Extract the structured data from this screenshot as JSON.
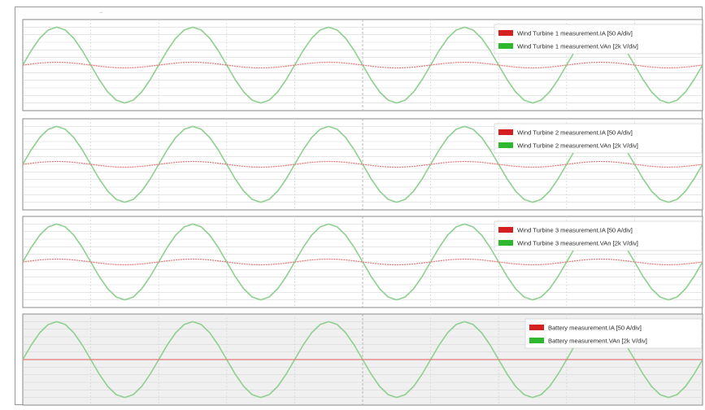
{
  "marker_text": "→",
  "colors": {
    "current": "#d42020",
    "voltage": "#2eb82e",
    "current_trace": "#e07a7a",
    "voltage_trace": "#8fd08f",
    "panel_bg": "#ffffff",
    "panel_bg_last": "#f0f0f0",
    "grid": "#d7d7d7",
    "center_line": "#a8a8a8",
    "panel_border": "#8a8a8a"
  },
  "chart_data": [
    {
      "type": "line",
      "grid": true,
      "legend_position": "top-right",
      "x": [
        0,
        1,
        2,
        3,
        4,
        5,
        6,
        7,
        8,
        9,
        10,
        11,
        12,
        13,
        14,
        15,
        16,
        17,
        18,
        19,
        20,
        21,
        22,
        23,
        24,
        25,
        26,
        27,
        28,
        29,
        30,
        31,
        32,
        33,
        34,
        35,
        36,
        37,
        38,
        39,
        40,
        41,
        42,
        43,
        44,
        45,
        46,
        47,
        48,
        49,
        50,
        51,
        52,
        53,
        54,
        55,
        56,
        57,
        58,
        59,
        60,
        61,
        62,
        63,
        64,
        65,
        66,
        67,
        68,
        69,
        70,
        71,
        72,
        73,
        74,
        75,
        76,
        77,
        78,
        79,
        80
      ],
      "ylim": [
        -1.2,
        1.2
      ],
      "series": [
        {
          "name": "Wind Turbine 1 measurement.IA [50 A/div]",
          "values": [
            0.0,
            0.0,
            0.0,
            0.0,
            0.0,
            0.0,
            0.0,
            0.0,
            0.0,
            0.0,
            0.0,
            0.0,
            0.0,
            0.0,
            0.0,
            0.0,
            0.0,
            0.0,
            0.0,
            0.0,
            0.0,
            0.0,
            0.0,
            0.0,
            0.0,
            0.0,
            0.0,
            0.0,
            0.0,
            0.0,
            0.0,
            0.0,
            0.0,
            0.0,
            0.0,
            0.0,
            0.0,
            0.0,
            0.0,
            0.0,
            0.0,
            0.0,
            0.0,
            0.0,
            0.0,
            0.0,
            0.0,
            0.0,
            0.0,
            0.0,
            0.0,
            0.0,
            0.0,
            0.0,
            0.0,
            0.0,
            0.0,
            0.0,
            0.0,
            0.0,
            0.0,
            0.0,
            0.0,
            0.0,
            0.0,
            0.0,
            0.0,
            0.0,
            0.0,
            0.0,
            0.0,
            0.0,
            0.0,
            0.0,
            0.0,
            0.0,
            0.0,
            0.0,
            0.0,
            0.0,
            0.0
          ]
        },
        {
          "name": "Wind Turbine 1 measurement.VAn [2k V/div]",
          "values": [
            0.0,
            0.0,
            0.0,
            0.0,
            0.0,
            0.0,
            0.0,
            0.0,
            0.0,
            0.0,
            0.0,
            0.0,
            0.0,
            0.0,
            0.0,
            0.0,
            0.0,
            0.0,
            0.0,
            0.0,
            0.0,
            0.0,
            0.0,
            0.0,
            0.0,
            0.0,
            0.0,
            0.0,
            0.0,
            0.0,
            0.0,
            0.0,
            0.0,
            0.0,
            0.0,
            0.0,
            0.0,
            0.0,
            0.0,
            0.0,
            0.0,
            0.0,
            0.0,
            0.0,
            0.0,
            0.0,
            0.0,
            0.0,
            0.0,
            0.0,
            0.0,
            0.0,
            0.0,
            0.0,
            0.0,
            0.0,
            0.0,
            0.0,
            0.0,
            0.0,
            0.0,
            0.0,
            0.0,
            0.0,
            0.0,
            0.0,
            0.0,
            0.0,
            0.0,
            0.0,
            0.0,
            0.0,
            0.0,
            0.0,
            0.0,
            0.0,
            0.0,
            0.0,
            0.0,
            0.0,
            0.0
          ]
        }
      ]
    },
    {
      "type": "line",
      "grid": true,
      "legend_position": "top-right",
      "x": [
        0,
        1,
        2,
        3,
        4,
        5,
        6,
        7,
        8,
        9,
        10,
        11,
        12,
        13,
        14,
        15,
        16,
        17,
        18,
        19,
        20,
        21,
        22,
        23,
        24,
        25,
        26,
        27,
        28,
        29,
        30,
        31,
        32,
        33,
        34,
        35,
        36,
        37,
        38,
        39,
        40,
        41,
        42,
        43,
        44,
        45,
        46,
        47,
        48,
        49,
        50,
        51,
        52,
        53,
        54,
        55,
        56,
        57,
        58,
        59,
        60,
        61,
        62,
        63,
        64,
        65,
        66,
        67,
        68,
        69,
        70,
        71,
        72,
        73,
        74,
        75,
        76,
        77,
        78,
        79,
        80
      ],
      "ylim": [
        -1.2,
        1.2
      ],
      "series": [
        {
          "name": "Wind Turbine 2 measurement.IA [50 A/div]",
          "values": [
            0.0,
            0.0,
            0.0,
            0.0,
            0.0,
            0.0,
            0.0,
            0.0,
            0.0,
            0.0,
            0.0,
            0.0,
            0.0,
            0.0,
            0.0,
            0.0,
            0.0,
            0.0,
            0.0,
            0.0,
            0.0,
            0.0,
            0.0,
            0.0,
            0.0,
            0.0,
            0.0,
            0.0,
            0.0,
            0.0,
            0.0,
            0.0,
            0.0,
            0.0,
            0.0,
            0.0,
            0.0,
            0.0,
            0.0,
            0.0,
            0.0,
            0.0,
            0.0,
            0.0,
            0.0,
            0.0,
            0.0,
            0.0,
            0.0,
            0.0,
            0.0,
            0.0,
            0.0,
            0.0,
            0.0,
            0.0,
            0.0,
            0.0,
            0.0,
            0.0,
            0.0,
            0.0,
            0.0,
            0.0,
            0.0,
            0.0,
            0.0,
            0.0,
            0.0,
            0.0,
            0.0,
            0.0,
            0.0,
            0.0,
            0.0,
            0.0,
            0.0,
            0.0,
            0.0,
            0.0,
            0.0
          ]
        },
        {
          "name": "Wind Turbine 2 measurement.VAn [2k V/div]",
          "values": [
            0.0,
            0.0,
            0.0,
            0.0,
            0.0,
            0.0,
            0.0,
            0.0,
            0.0,
            0.0,
            0.0,
            0.0,
            0.0,
            0.0,
            0.0,
            0.0,
            0.0,
            0.0,
            0.0,
            0.0,
            0.0,
            0.0,
            0.0,
            0.0,
            0.0,
            0.0,
            0.0,
            0.0,
            0.0,
            0.0,
            0.0,
            0.0,
            0.0,
            0.0,
            0.0,
            0.0,
            0.0,
            0.0,
            0.0,
            0.0,
            0.0,
            0.0,
            0.0,
            0.0,
            0.0,
            0.0,
            0.0,
            0.0,
            0.0,
            0.0,
            0.0,
            0.0,
            0.0,
            0.0,
            0.0,
            0.0,
            0.0,
            0.0,
            0.0,
            0.0,
            0.0,
            0.0,
            0.0,
            0.0,
            0.0,
            0.0,
            0.0,
            0.0,
            0.0,
            0.0,
            0.0,
            0.0,
            0.0,
            0.0,
            0.0,
            0.0,
            0.0,
            0.0,
            0.0,
            0.0,
            0.0
          ]
        }
      ]
    },
    {
      "type": "line",
      "grid": true,
      "legend_position": "top-right",
      "x": [
        0,
        1,
        2,
        3,
        4,
        5,
        6,
        7,
        8,
        9,
        10,
        11,
        12,
        13,
        14,
        15,
        16,
        17,
        18,
        19,
        20,
        21,
        22,
        23,
        24,
        25,
        26,
        27,
        28,
        29,
        30,
        31,
        32,
        33,
        34,
        35,
        36,
        37,
        38,
        39,
        40,
        41,
        42,
        43,
        44,
        45,
        46,
        47,
        48,
        49,
        50,
        51,
        52,
        53,
        54,
        55,
        56,
        57,
        58,
        59,
        60,
        61,
        62,
        63,
        64,
        65,
        66,
        67,
        68,
        69,
        70,
        71,
        72,
        73,
        74,
        75,
        76,
        77,
        78,
        79,
        80
      ],
      "ylim": [
        -1.2,
        1.2
      ],
      "series": [
        {
          "name": "Wind Turbine 3 measurement.IA [50 A/div]",
          "values": [
            0.0,
            0.0,
            0.0,
            0.0,
            0.0,
            0.0,
            0.0,
            0.0,
            0.0,
            0.0,
            0.0,
            0.0,
            0.0,
            0.0,
            0.0,
            0.0,
            0.0,
            0.0,
            0.0,
            0.0,
            0.0,
            0.0,
            0.0,
            0.0,
            0.0,
            0.0,
            0.0,
            0.0,
            0.0,
            0.0,
            0.0,
            0.0,
            0.0,
            0.0,
            0.0,
            0.0,
            0.0,
            0.0,
            0.0,
            0.0,
            0.0,
            0.0,
            0.0,
            0.0,
            0.0,
            0.0,
            0.0,
            0.0,
            0.0,
            0.0,
            0.0,
            0.0,
            0.0,
            0.0,
            0.0,
            0.0,
            0.0,
            0.0,
            0.0,
            0.0,
            0.0,
            0.0,
            0.0,
            0.0,
            0.0,
            0.0,
            0.0,
            0.0,
            0.0,
            0.0,
            0.0,
            0.0,
            0.0,
            0.0,
            0.0,
            0.0,
            0.0,
            0.0,
            0.0,
            0.0,
            0.0
          ]
        },
        {
          "name": "Wind Turbine 3 measurement.VAn [2k V/div]",
          "values": [
            0.0,
            0.0,
            0.0,
            0.0,
            0.0,
            0.0,
            0.0,
            0.0,
            0.0,
            0.0,
            0.0,
            0.0,
            0.0,
            0.0,
            0.0,
            0.0,
            0.0,
            0.0,
            0.0,
            0.0,
            0.0,
            0.0,
            0.0,
            0.0,
            0.0,
            0.0,
            0.0,
            0.0,
            0.0,
            0.0,
            0.0,
            0.0,
            0.0,
            0.0,
            0.0,
            0.0,
            0.0,
            0.0,
            0.0,
            0.0,
            0.0,
            0.0,
            0.0,
            0.0,
            0.0,
            0.0,
            0.0,
            0.0,
            0.0,
            0.0,
            0.0,
            0.0,
            0.0,
            0.0,
            0.0,
            0.0,
            0.0,
            0.0,
            0.0,
            0.0,
            0.0,
            0.0,
            0.0,
            0.0,
            0.0,
            0.0,
            0.0,
            0.0,
            0.0,
            0.0,
            0.0,
            0.0,
            0.0,
            0.0,
            0.0,
            0.0,
            0.0,
            0.0,
            0.0,
            0.0,
            0.0
          ]
        }
      ]
    },
    {
      "type": "line",
      "grid": true,
      "legend_position": "top-right",
      "x": [
        0,
        1,
        2,
        3,
        4,
        5,
        6,
        7,
        8,
        9,
        10,
        11,
        12,
        13,
        14,
        15,
        16,
        17,
        18,
        19,
        20,
        21,
        22,
        23,
        24,
        25,
        26,
        27,
        28,
        29,
        30,
        31,
        32,
        33,
        34,
        35,
        36,
        37,
        38,
        39,
        40,
        41,
        42,
        43,
        44,
        45,
        46,
        47,
        48,
        49,
        50,
        51,
        52,
        53,
        54,
        55,
        56,
        57,
        58,
        59,
        60,
        61,
        62,
        63,
        64,
        65,
        66,
        67,
        68,
        69,
        70,
        71,
        72,
        73,
        74,
        75,
        76,
        77,
        78,
        79,
        80
      ],
      "ylim": [
        -1.2,
        1.2
      ],
      "series": [
        {
          "name": "Battery measurement.IA [50 A/div]",
          "values": [
            0.0,
            0.0,
            0.0,
            0.0,
            0.0,
            0.0,
            0.0,
            0.0,
            0.0,
            0.0,
            0.0,
            0.0,
            0.0,
            0.0,
            0.0,
            0.0,
            0.0,
            0.0,
            0.0,
            0.0,
            0.0,
            0.0,
            0.0,
            0.0,
            0.0,
            0.0,
            0.0,
            0.0,
            0.0,
            0.0,
            0.0,
            0.0,
            0.0,
            0.0,
            0.0,
            0.0,
            0.0,
            0.0,
            0.0,
            0.0,
            0.0,
            0.0,
            0.0,
            0.0,
            0.0,
            0.0,
            0.0,
            0.0,
            0.0,
            0.0,
            0.0,
            0.0,
            0.0,
            0.0,
            0.0,
            0.0,
            0.0,
            0.0,
            0.0,
            0.0,
            0.0,
            0.0,
            0.0,
            0.0,
            0.0,
            0.0,
            0.0,
            0.0,
            0.0,
            0.0,
            0.0,
            0.0,
            0.0,
            0.0,
            0.0,
            0.0,
            0.0,
            0.0,
            0.0,
            0.0,
            0.0
          ]
        },
        {
          "name": "Battery measurement.VAn [2k V/div]",
          "values": [
            0.0,
            0.0,
            0.0,
            0.0,
            0.0,
            0.0,
            0.0,
            0.0,
            0.0,
            0.0,
            0.0,
            0.0,
            0.0,
            0.0,
            0.0,
            0.0,
            0.0,
            0.0,
            0.0,
            0.0,
            0.0,
            0.0,
            0.0,
            0.0,
            0.0,
            0.0,
            0.0,
            0.0,
            0.0,
            0.0,
            0.0,
            0.0,
            0.0,
            0.0,
            0.0,
            0.0,
            0.0,
            0.0,
            0.0,
            0.0,
            0.0,
            0.0,
            0.0,
            0.0,
            0.0,
            0.0,
            0.0,
            0.0,
            0.0,
            0.0,
            0.0,
            0.0,
            0.0,
            0.0,
            0.0,
            0.0,
            0.0,
            0.0,
            0.0,
            0.0,
            0.0,
            0.0,
            0.0,
            0.0,
            0.0,
            0.0,
            0.0,
            0.0,
            0.0,
            0.0,
            0.0,
            0.0,
            0.0,
            0.0,
            0.0,
            0.0,
            0.0,
            0.0,
            0.0,
            0.0,
            0.0
          ]
        }
      ]
    }
  ]
}
